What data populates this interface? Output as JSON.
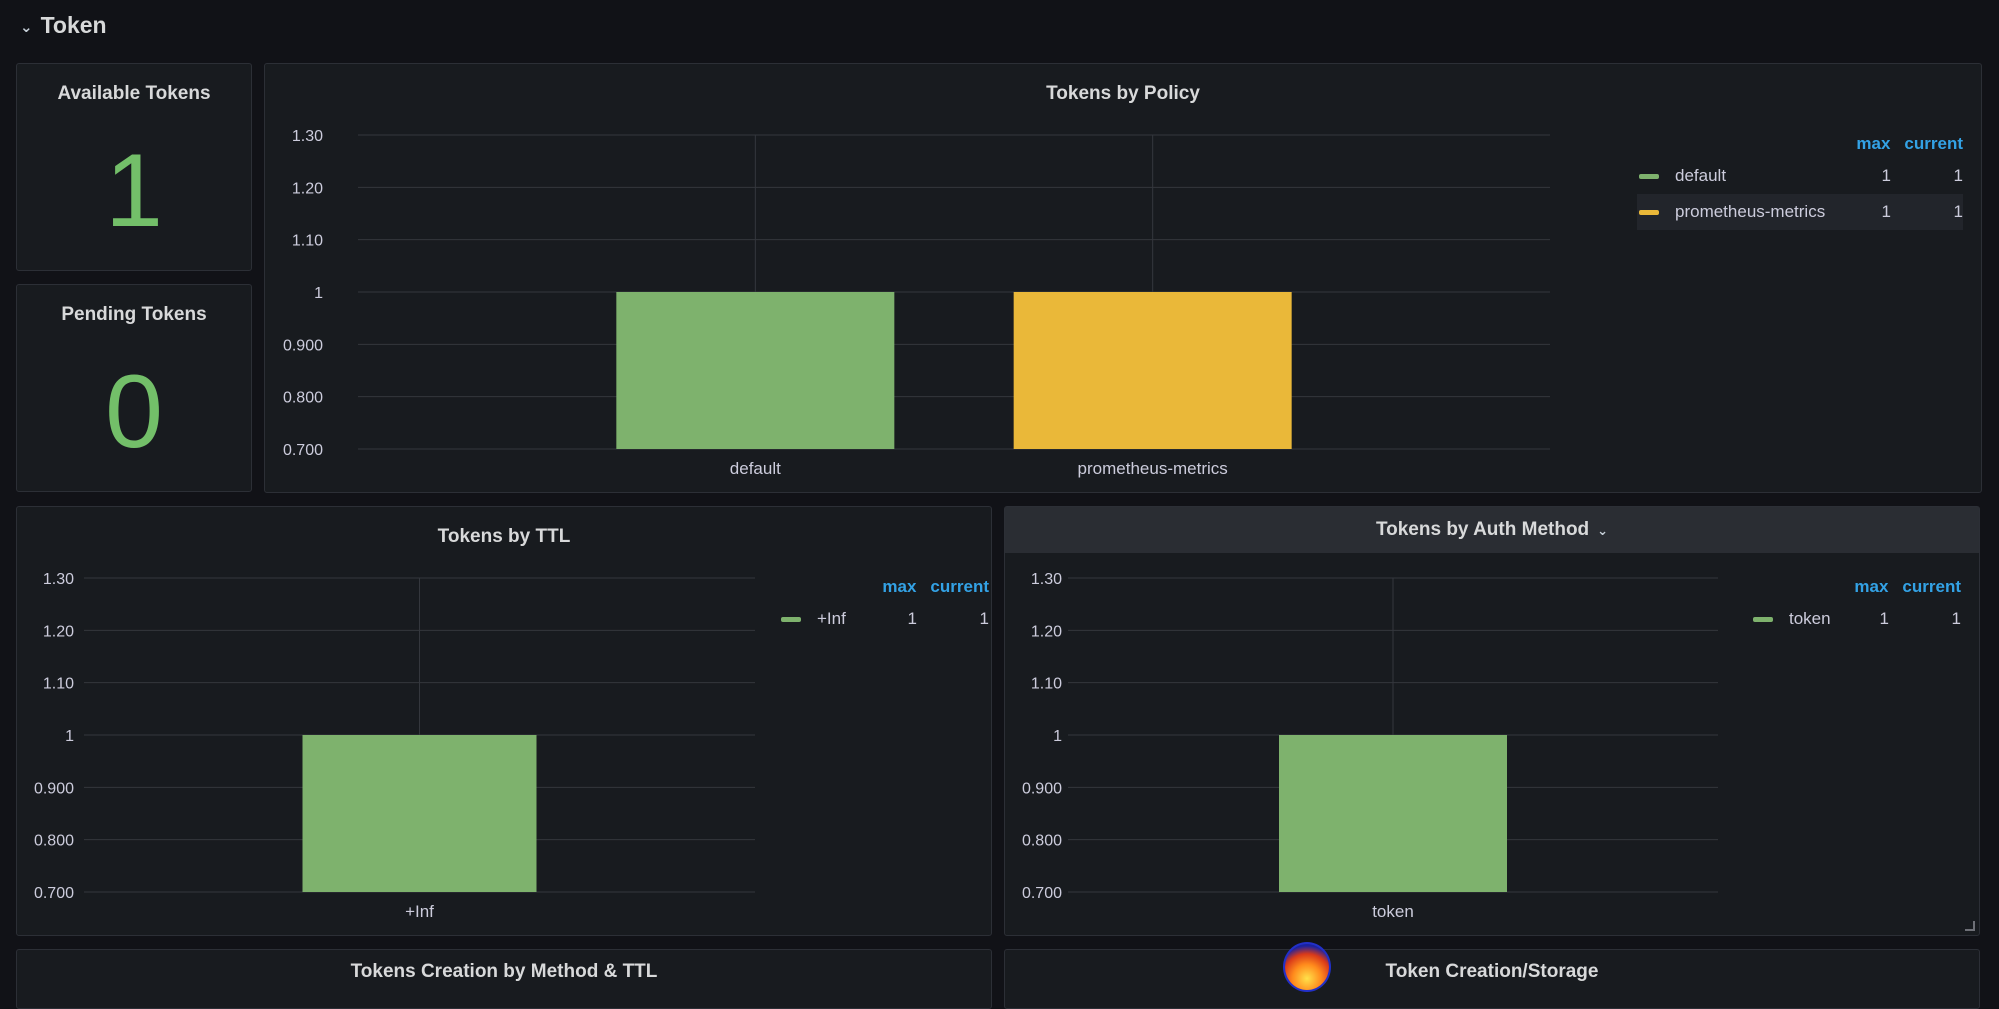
{
  "row": {
    "title": "Token",
    "chevron": "chevron-down-icon"
  },
  "colors": {
    "green": "#73bf69",
    "green_bar": "#7eb26d",
    "yellow": "#eab839",
    "blue_header": "#33a2e5"
  },
  "available_tokens": {
    "title": "Available Tokens",
    "value": "1"
  },
  "pending_tokens": {
    "title": "Pending Tokens",
    "value": "0"
  },
  "tokens_by_policy": {
    "title": "Tokens by Policy",
    "legend": {
      "headers": [
        "max",
        "current"
      ],
      "rows": [
        {
          "name": "default",
          "max": "1",
          "current": "1",
          "color": "#7eb26d"
        },
        {
          "name": "prometheus-metrics",
          "max": "1",
          "current": "1",
          "color": "#eab839"
        }
      ]
    }
  },
  "tokens_by_ttl": {
    "title": "Tokens by TTL",
    "legend": {
      "headers": [
        "max",
        "current"
      ],
      "rows": [
        {
          "name": "+Inf",
          "max": "1",
          "current": "1",
          "color": "#7eb26d"
        }
      ]
    }
  },
  "tokens_by_auth": {
    "title": "Tokens by Auth Method",
    "legend": {
      "headers": [
        "max",
        "current"
      ],
      "rows": [
        {
          "name": "token",
          "max": "1",
          "current": "1",
          "color": "#7eb26d"
        }
      ]
    }
  },
  "bottom_panels": {
    "left_title": "Tokens Creation by Method & TTL",
    "right_title": "Token Creation/Storage"
  },
  "chart_data": [
    {
      "type": "bar",
      "title": "Tokens by Policy",
      "categories": [
        "default",
        "prometheus-metrics"
      ],
      "values": [
        1,
        1
      ],
      "colors": [
        "#7eb26d",
        "#eab839"
      ],
      "ylim": [
        0.7,
        1.3
      ],
      "yticks": [
        0.7,
        0.8,
        0.9,
        1,
        1.1,
        1.2,
        1.3
      ],
      "ytick_labels": [
        "0.700",
        "0.800",
        "0.900",
        "1",
        "1.10",
        "1.20",
        "1.30"
      ]
    },
    {
      "type": "bar",
      "title": "Tokens by TTL",
      "categories": [
        "+Inf"
      ],
      "values": [
        1
      ],
      "colors": [
        "#7eb26d"
      ],
      "ylim": [
        0.7,
        1.3
      ],
      "yticks": [
        0.7,
        0.8,
        0.9,
        1,
        1.1,
        1.2,
        1.3
      ],
      "ytick_labels": [
        "0.700",
        "0.800",
        "0.900",
        "1",
        "1.10",
        "1.20",
        "1.30"
      ]
    },
    {
      "type": "bar",
      "title": "Tokens by Auth Method",
      "categories": [
        "token"
      ],
      "values": [
        1
      ],
      "colors": [
        "#7eb26d"
      ],
      "ylim": [
        0.7,
        1.3
      ],
      "yticks": [
        0.7,
        0.8,
        0.9,
        1,
        1.1,
        1.2,
        1.3
      ],
      "ytick_labels": [
        "0.700",
        "0.800",
        "0.900",
        "1",
        "1.10",
        "1.20",
        "1.30"
      ]
    }
  ]
}
